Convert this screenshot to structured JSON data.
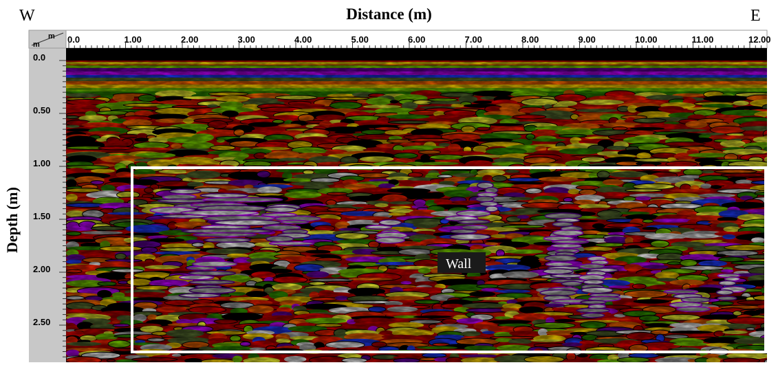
{
  "figure": {
    "x_axis_title": "Distance (m)",
    "y_axis_title": "Depth (m)",
    "west_label": "W",
    "east_label": "E",
    "corner_unit_top": "m",
    "corner_unit_left": "m",
    "x_ticks": [
      "0.0",
      "1.00",
      "2.00",
      "3.00",
      "4.00",
      "5.00",
      "6.00",
      "7.00",
      "8.00",
      "9.00",
      "10.00",
      "11.00",
      "12.00"
    ],
    "y_ticks": [
      "0.0",
      "0.50",
      "1.00",
      "1.50",
      "2.00",
      "2.50"
    ],
    "annotation_label": "Wall",
    "colors": {
      "background": "#ffffff",
      "ruler": "#bfbfbf",
      "highlight_box": "#ffffff",
      "annotation_bg": "#1a1a1a",
      "palette": [
        "#b30000",
        "#e60000",
        "#ff2200",
        "#ff6a00",
        "#ffd400",
        "#ffff33",
        "#7bd000",
        "#2e8b00",
        "#556b2f",
        "#000000",
        "#1e3cff",
        "#6a00a8",
        "#c000ff",
        "#ffffff",
        "#b8b8b8"
      ]
    }
  }
}
